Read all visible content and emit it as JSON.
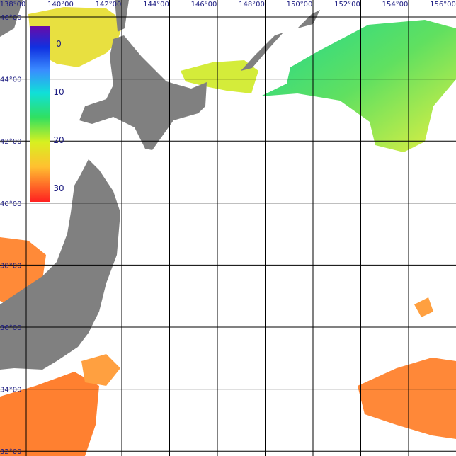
{
  "map": {
    "lon_labels": [
      "138°00",
      "140°00",
      "142°00",
      "144°00",
      "146°00",
      "148°00",
      "150°00",
      "152°00",
      "154°00",
      "156°00"
    ],
    "lat_labels": [
      "46°00",
      "44°00",
      "42°00",
      "40°00",
      "38°00",
      "36°00",
      "34°00",
      "32°00"
    ]
  },
  "colorbar": {
    "ticks": [
      0,
      10,
      20,
      30
    ]
  }
}
